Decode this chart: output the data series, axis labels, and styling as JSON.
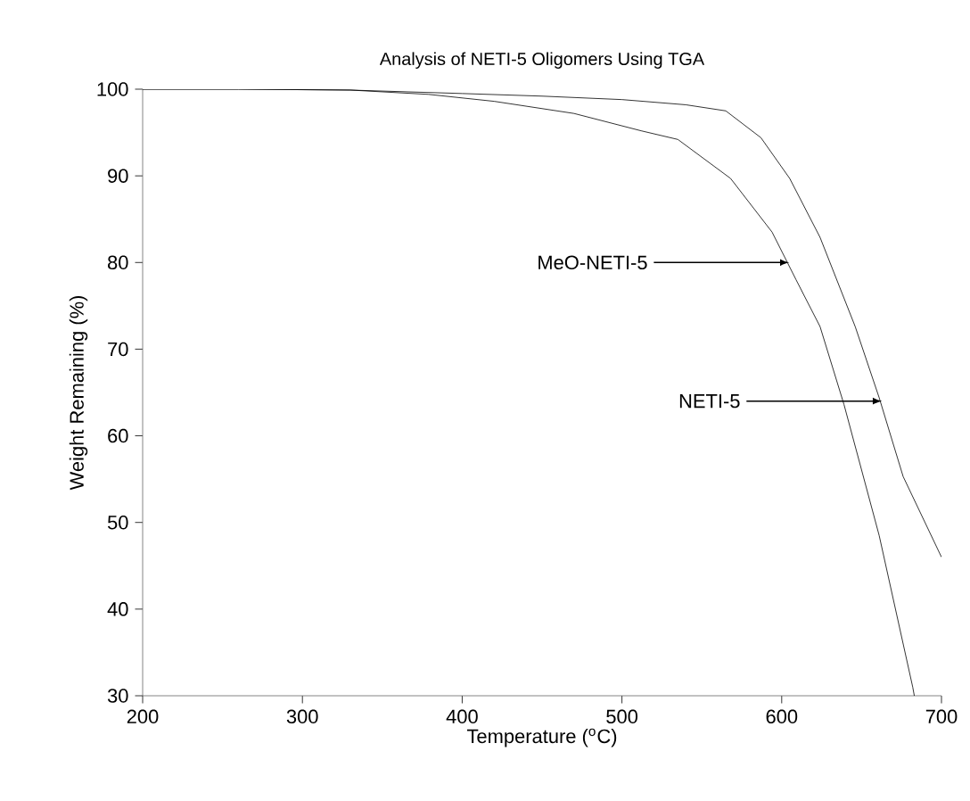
{
  "chart_data": {
    "type": "line",
    "title": "Analysis of NETI-5 Oligomers Using TGA",
    "xlabel": "Temperature ($^{o}$C)",
    "ylabel": "Weight Remaining (%)",
    "xlim": [
      200,
      700
    ],
    "ylim": [
      30,
      100
    ],
    "xticks": [
      200,
      300,
      400,
      500,
      600,
      700
    ],
    "yticks": [
      30,
      40,
      50,
      60,
      70,
      80,
      90,
      100
    ],
    "grid": false,
    "marker": "none",
    "line_style": "solid",
    "series": [
      {
        "color": "#000000",
        "x": [
          200,
          260,
          330,
          379,
          420,
          470,
          512,
          535,
          568,
          594,
          609,
          624,
          639,
          661,
          682,
          683
        ],
        "values": [
          100,
          100,
          99.9,
          99.4,
          98.6,
          97.2,
          95.2,
          94.2,
          89.7,
          83.5,
          78,
          72.6,
          63.6,
          48.5,
          31,
          30
        ]
      },
      {
        "color": "#000000",
        "x": [
          200,
          260,
          330,
          400,
          450,
          500,
          540,
          565,
          587,
          605,
          624,
          646,
          661,
          676,
          700
        ],
        "values": [
          100,
          100,
          99.9,
          99.5,
          99.2,
          98.8,
          98.2,
          97.5,
          94.4,
          89.7,
          82.9,
          72.6,
          64.4,
          55.3,
          46
        ]
      }
    ],
    "annotations": [
      {
        "text": "MeO-NETI-5",
        "x": 607,
        "y": 80
      },
      {
        "text": "NETI-5",
        "x": 665,
        "y": 64
      }
    ]
  }
}
